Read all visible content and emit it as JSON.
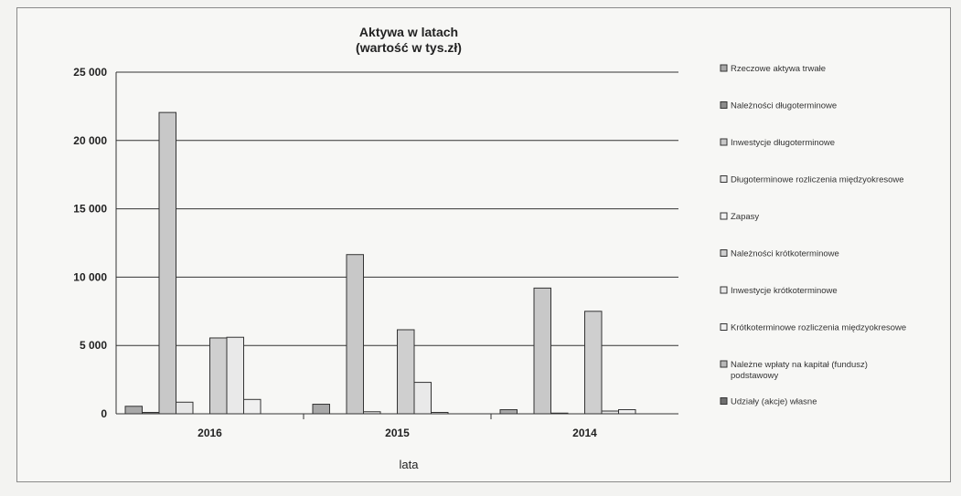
{
  "chart_data": {
    "type": "bar",
    "title": "Aktywa w latach",
    "subtitle": "(wartość w tys.zł)",
    "xlabel": "lata",
    "ylabel": "",
    "categories": [
      "2016",
      "2015",
      "2014"
    ],
    "ylim": [
      0,
      25000
    ],
    "yticks": [
      0,
      5000,
      10000,
      15000,
      20000,
      25000
    ],
    "ytick_labels": [
      "0",
      "5 000",
      "10 000",
      "15 000",
      "20 000",
      "25 000"
    ],
    "grid": true,
    "legend_position": "right",
    "series": [
      {
        "name": "Rzeczowe aktywa trwałe",
        "values": [
          550,
          700,
          300
        ],
        "color": "#a8a8a8"
      },
      {
        "name": "Należności długoterminowe",
        "values": [
          100,
          0,
          0
        ],
        "color": "#8c8c8c"
      },
      {
        "name": "Inwestycje długoterminowe",
        "values": [
          22050,
          11650,
          9200
        ],
        "color": "#c8c8c8"
      },
      {
        "name": "Długoterminowe rozliczenia międzyokresowe",
        "values": [
          850,
          150,
          50
        ],
        "color": "#e6e6e6"
      },
      {
        "name": "Zapasy",
        "values": [
          0,
          0,
          0
        ],
        "color": "#f2f2f2"
      },
      {
        "name": "Należności krótkoterminowe",
        "values": [
          5550,
          6150,
          7500
        ],
        "color": "#cfcfcf"
      },
      {
        "name": "Inwestycje krótkoterminowe",
        "values": [
          5600,
          2300,
          200
        ],
        "color": "#e9e9e9"
      },
      {
        "name": "Krótkoterminowe rozliczenia międzyokresowe",
        "values": [
          1050,
          100,
          300
        ],
        "color": "#f0f0f0"
      },
      {
        "name": "Należne wpłaty na kapitał (fundusz) podstawowy",
        "values": [
          0,
          0,
          0
        ],
        "color": "#b8b8b8"
      },
      {
        "name": "Udziały (akcje) własne",
        "values": [
          0,
          0,
          0
        ],
        "color": "#707070"
      }
    ]
  }
}
